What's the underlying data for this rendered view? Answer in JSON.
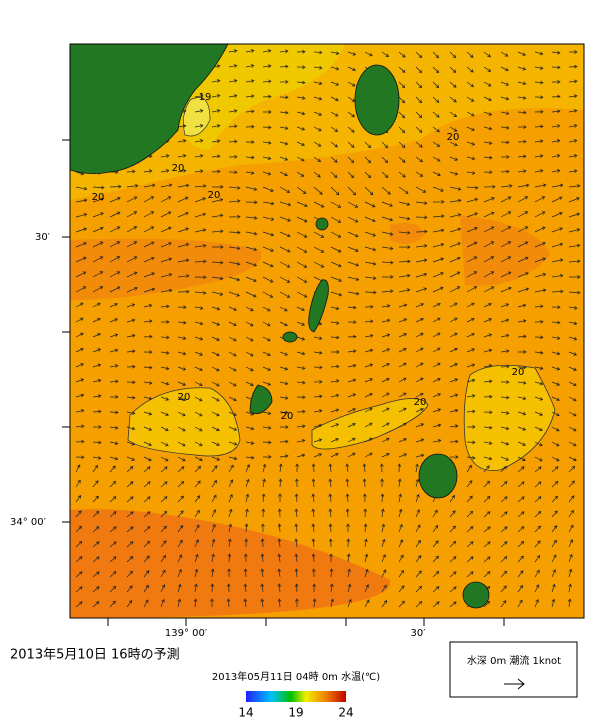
{
  "map": {
    "lat_labels": [
      "30′",
      "34° 00′"
    ],
    "lon_labels": [
      "139° 00′",
      "30′"
    ],
    "contour_labels": [
      "19",
      "20",
      "20",
      "20",
      "20",
      "20",
      "20",
      "20",
      "20"
    ]
  },
  "title": "2013年5月10日 16時の予測",
  "subtitle": "2013年05月11日 04時 0m 水温(℃)",
  "colorbar": {
    "ticks": [
      14,
      19,
      24
    ]
  },
  "legend": {
    "text": "水深 0m 潮流 1knot"
  }
}
